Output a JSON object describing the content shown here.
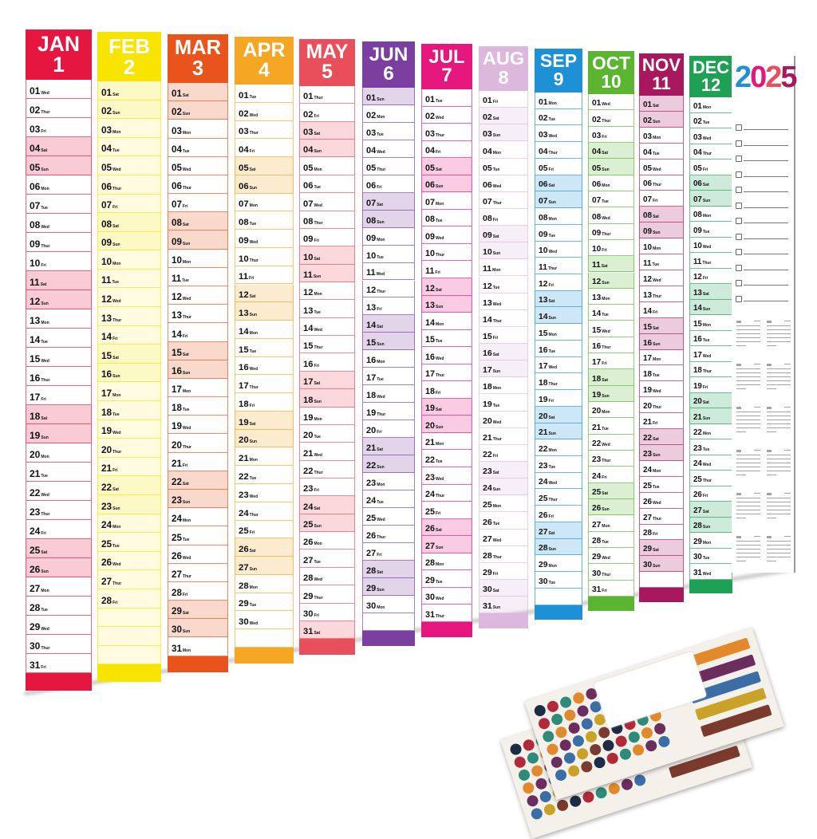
{
  "year": "2025",
  "year_digit_colors": [
    "#1e90d6",
    "#e5177f",
    "#e94f5b",
    "#a8185f"
  ],
  "weekday_labels": [
    "Sun",
    "Mon",
    "Tue",
    "Wed",
    "Thur",
    "Fri",
    "Sat"
  ],
  "months": [
    {
      "abbr": "JAN",
      "num": "1",
      "color": "#e5163f",
      "days": 31,
      "first_weekday": "Wed"
    },
    {
      "abbr": "FEB",
      "num": "2",
      "color": "#f7e400",
      "days": 28,
      "first_weekday": "Sat"
    },
    {
      "abbr": "MAR",
      "num": "3",
      "color": "#e8541c",
      "days": 31,
      "first_weekday": "Sat"
    },
    {
      "abbr": "APR",
      "num": "4",
      "color": "#f5a623",
      "days": 30,
      "first_weekday": "Tue"
    },
    {
      "abbr": "MAY",
      "num": "5",
      "color": "#e94f5b",
      "days": 31,
      "first_weekday": "Thur"
    },
    {
      "abbr": "JUN",
      "num": "6",
      "color": "#7b3fa0",
      "days": 30,
      "first_weekday": "Sun"
    },
    {
      "abbr": "JUL",
      "num": "7",
      "color": "#e5177f",
      "days": 31,
      "first_weekday": "Tue"
    },
    {
      "abbr": "AUG",
      "num": "8",
      "color": "#dcb8dc",
      "days": 31,
      "first_weekday": "Fri"
    },
    {
      "abbr": "SEP",
      "num": "9",
      "color": "#1e90d6",
      "days": 30,
      "first_weekday": "Mon"
    },
    {
      "abbr": "OCT",
      "num": "10",
      "color": "#5cb531",
      "days": 31,
      "first_weekday": "Wed"
    },
    {
      "abbr": "NOV",
      "num": "11",
      "color": "#a8185f",
      "days": 30,
      "first_weekday": "Sat"
    },
    {
      "abbr": "DEC",
      "num": "12",
      "color": "#1fa155",
      "days": 31,
      "first_weekday": "Mon"
    }
  ],
  "checklist_count": 12,
  "mini_calendar_count": 12
}
